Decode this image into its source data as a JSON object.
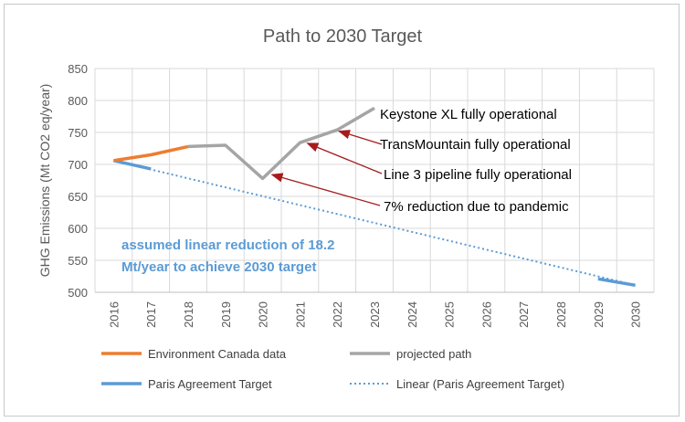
{
  "chart_data": {
    "type": "line",
    "title": "Path to 2030 Target",
    "ylabel": "GHG Emissions (Mt CO2 eq/year)",
    "xlabel": "",
    "ylim": [
      500,
      850
    ],
    "yticks": [
      500,
      550,
      600,
      650,
      700,
      750,
      800,
      850
    ],
    "categories": [
      "2016",
      "2017",
      "2018",
      "2019",
      "2020",
      "2021",
      "2022",
      "2023",
      "2024",
      "2025",
      "2026",
      "2027",
      "2028",
      "2029",
      "2030"
    ],
    "grid": true,
    "legend_position": "bottom",
    "series": [
      {
        "name": "Environment Canada data",
        "color": "#ed7d31",
        "style": "solid",
        "points": [
          [
            2016,
            706
          ],
          [
            2017,
            715
          ],
          [
            2018,
            728
          ]
        ]
      },
      {
        "name": "projected path",
        "color": "#a5a5a5",
        "style": "solid",
        "points": [
          [
            2018,
            728
          ],
          [
            2019,
            730
          ],
          [
            2020,
            678
          ],
          [
            2021,
            734
          ],
          [
            2022,
            754
          ],
          [
            2023,
            788
          ]
        ]
      },
      {
        "name": "Paris Agreement Target",
        "color": "#5b9bd5",
        "style": "solid",
        "points": [
          [
            2016,
            706
          ],
          [
            2017,
            693
          ]
        ],
        "points_b": [
          [
            2029,
            521
          ],
          [
            2030,
            511
          ]
        ]
      },
      {
        "name": "Linear (Paris Agreement Target)",
        "color": "#5b9bd5",
        "style": "dotted",
        "points": [
          [
            2016,
            706
          ],
          [
            2030,
            511
          ]
        ]
      }
    ],
    "annotations": [
      {
        "text": "Keystone XL fully operational"
      },
      {
        "text": "TransMountain fully operational",
        "arrow_to": [
          2022.05,
          752
        ]
      },
      {
        "text": "Line 3 pipeline fully operational",
        "arrow_to": [
          2021.2,
          733
        ]
      },
      {
        "text": "7% reduction due to pandemic",
        "arrow_to": [
          2020.25,
          684
        ]
      }
    ],
    "note_lines": [
      "assumed linear reduction of 18.2",
      "Mt/year to achieve 2030 target"
    ],
    "note_color": "#5b9bd5"
  }
}
